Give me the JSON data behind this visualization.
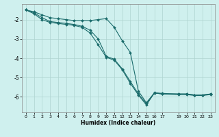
{
  "xlabel": "Humidex (Indice chaleur)",
  "bg_color": "#cff0ee",
  "line_color": "#1a6b6b",
  "grid_color": "#aed4d0",
  "xlim": [
    -0.5,
    23.5
  ],
  "ylim": [
    -6.8,
    -1.2
  ],
  "yticks": [
    -6,
    -5,
    -4,
    -3,
    -2
  ],
  "xticks": [
    0,
    1,
    2,
    3,
    4,
    5,
    6,
    7,
    8,
    9,
    10,
    11,
    12,
    13,
    14,
    15,
    16,
    17,
    19,
    20,
    21,
    22,
    23
  ],
  "line1_x": [
    0,
    1,
    2,
    3,
    4,
    5,
    6,
    7,
    8,
    9,
    10,
    11,
    12,
    13,
    14,
    15,
    16,
    17,
    19,
    20,
    21,
    22,
    23
  ],
  "line1_y": [
    -1.5,
    -1.6,
    -1.75,
    -1.9,
    -1.95,
    -2.0,
    -2.05,
    -2.05,
    -2.05,
    -2.0,
    -1.95,
    -2.4,
    -3.1,
    -3.7,
    -5.7,
    -6.3,
    -5.8,
    -5.85,
    -5.85,
    -5.85,
    -5.9,
    -5.9,
    -5.85
  ],
  "line2_x": [
    0,
    1,
    2,
    3,
    4,
    5,
    6,
    7,
    8,
    9,
    10,
    11,
    12,
    13,
    14,
    15,
    16,
    17,
    19,
    20,
    21,
    22,
    23
  ],
  "line2_y": [
    -1.5,
    -1.65,
    -1.9,
    -2.1,
    -2.15,
    -2.2,
    -2.25,
    -2.35,
    -2.55,
    -3.0,
    -3.9,
    -4.05,
    -4.55,
    -5.2,
    -5.85,
    -6.35,
    -5.78,
    -5.82,
    -5.85,
    -5.85,
    -5.9,
    -5.9,
    -5.85
  ],
  "line3_x": [
    0,
    1,
    2,
    3,
    4,
    5,
    6,
    7,
    8,
    9,
    10,
    11,
    12,
    13,
    14,
    15,
    16,
    17,
    19,
    20,
    21,
    22,
    23
  ],
  "line3_y": [
    -1.5,
    -1.7,
    -2.0,
    -2.15,
    -2.2,
    -2.25,
    -2.3,
    -2.4,
    -2.7,
    -3.3,
    -3.95,
    -4.1,
    -4.6,
    -5.3,
    -5.9,
    -6.42,
    -5.8,
    -5.85,
    -5.88,
    -5.88,
    -5.93,
    -5.93,
    -5.88
  ]
}
